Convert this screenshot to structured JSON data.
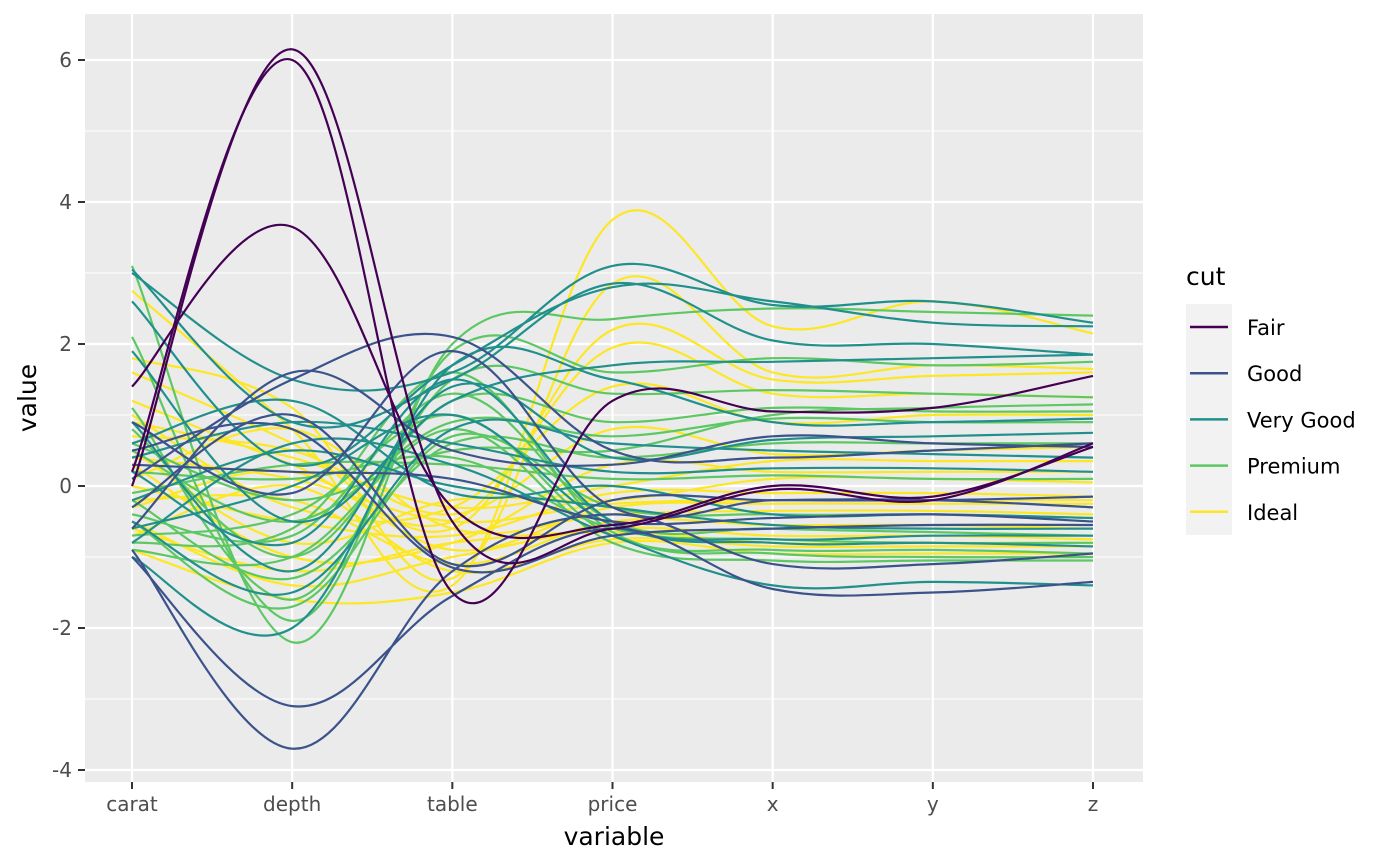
{
  "chart_data": {
    "type": "line",
    "subtype": "parallel-coordinates",
    "xlabel": "variable",
    "ylabel": "value",
    "categories": [
      "carat",
      "depth",
      "table",
      "price",
      "x",
      "y",
      "z"
    ],
    "ylim": [
      -4.2,
      6.5
    ],
    "yticks": [
      -4,
      -2,
      0,
      2,
      4,
      6
    ],
    "ytick_labels": [
      "-4",
      "-2",
      "0",
      "2",
      "4",
      "6"
    ],
    "grid": true,
    "legend": {
      "title": "cut",
      "position": "right",
      "entries": [
        {
          "label": "Fair",
          "color": "#440154"
        },
        {
          "label": "Good",
          "color": "#3B528B"
        },
        {
          "label": "Very Good",
          "color": "#21908C"
        },
        {
          "label": "Premium",
          "color": "#5DC863"
        },
        {
          "label": "Ideal",
          "color": "#FDE725"
        }
      ]
    },
    "series": [
      {
        "cut": "Fair",
        "values": [
          0.0,
          6.15,
          -0.5,
          -0.6,
          -0.05,
          -0.2,
          0.6
        ]
      },
      {
        "cut": "Fair",
        "values": [
          1.4,
          3.65,
          -0.3,
          -0.55,
          0.0,
          -0.15,
          0.55
        ]
      },
      {
        "cut": "Fair",
        "values": [
          0.2,
          6.0,
          -1.5,
          1.2,
          1.05,
          1.1,
          1.55
        ]
      },
      {
        "cut": "Good",
        "values": [
          -0.9,
          -3.7,
          -1.2,
          -0.4,
          -1.1,
          -1.1,
          -0.95
        ]
      },
      {
        "cut": "Good",
        "values": [
          -1.0,
          -3.1,
          -1.55,
          -0.6,
          -1.45,
          -1.5,
          -1.35
        ]
      },
      {
        "cut": "Good",
        "values": [
          0.1,
          1.5,
          2.1,
          0.5,
          0.4,
          0.5,
          0.6
        ]
      },
      {
        "cut": "Good",
        "values": [
          -0.3,
          1.0,
          -1.1,
          -0.2,
          -0.2,
          -0.2,
          -0.15
        ]
      },
      {
        "cut": "Good",
        "values": [
          0.5,
          0.8,
          -1.15,
          -0.7,
          -0.6,
          -0.55,
          -0.55
        ]
      },
      {
        "cut": "Good",
        "values": [
          -0.6,
          1.6,
          0.5,
          0.3,
          0.7,
          0.6,
          0.55
        ]
      },
      {
        "cut": "Good",
        "values": [
          0.9,
          -0.1,
          1.9,
          -0.3,
          -0.2,
          -0.2,
          -0.3
        ]
      },
      {
        "cut": "Good",
        "values": [
          0.3,
          0.2,
          0.1,
          -0.5,
          -0.45,
          -0.4,
          -0.5
        ]
      },
      {
        "cut": "Very Good",
        "values": [
          3.0,
          1.5,
          1.6,
          3.1,
          2.55,
          2.6,
          2.3
        ]
      },
      {
        "cut": "Very Good",
        "values": [
          3.05,
          0.9,
          1.5,
          2.85,
          2.05,
          2.0,
          1.85
        ]
      },
      {
        "cut": "Very Good",
        "values": [
          2.6,
          0.3,
          1.7,
          2.8,
          2.6,
          2.3,
          2.25
        ]
      },
      {
        "cut": "Very Good",
        "values": [
          1.9,
          -0.5,
          1.2,
          1.7,
          1.75,
          1.8,
          1.85
        ]
      },
      {
        "cut": "Very Good",
        "values": [
          -1.0,
          -2.0,
          1.7,
          1.5,
          0.9,
          0.9,
          0.95
        ]
      },
      {
        "cut": "Very Good",
        "values": [
          -0.5,
          -1.5,
          0.8,
          0.6,
          0.5,
          0.45,
          0.4
        ]
      },
      {
        "cut": "Very Good",
        "values": [
          0.6,
          1.2,
          -0.1,
          0.0,
          -0.4,
          -0.4,
          -0.45
        ]
      },
      {
        "cut": "Very Good",
        "values": [
          -0.8,
          0.6,
          0.3,
          -0.7,
          -1.4,
          -1.35,
          -1.4
        ]
      },
      {
        "cut": "Very Good",
        "values": [
          0.2,
          -0.8,
          1.5,
          -0.5,
          -0.8,
          -0.8,
          -0.85
        ]
      },
      {
        "cut": "Very Good",
        "values": [
          -0.2,
          0.5,
          0.0,
          -0.3,
          -0.55,
          -0.6,
          -0.6
        ]
      },
      {
        "cut": "Very Good",
        "values": [
          0.9,
          -1.2,
          1.4,
          0.4,
          0.65,
          0.7,
          0.75
        ]
      },
      {
        "cut": "Very Good",
        "values": [
          -0.6,
          0.0,
          1.0,
          -0.55,
          -0.75,
          -0.7,
          -0.7
        ]
      },
      {
        "cut": "Very Good",
        "values": [
          0.4,
          0.9,
          0.6,
          0.2,
          0.25,
          0.25,
          0.2
        ]
      },
      {
        "cut": "Premium",
        "values": [
          3.1,
          -2.2,
          2.0,
          2.35,
          2.5,
          2.45,
          2.4
        ]
      },
      {
        "cut": "Premium",
        "values": [
          2.1,
          -1.9,
          1.9,
          1.6,
          1.8,
          1.7,
          1.75
        ]
      },
      {
        "cut": "Premium",
        "values": [
          1.1,
          -1.6,
          1.5,
          1.3,
          1.35,
          1.3,
          1.25
        ]
      },
      {
        "cut": "Premium",
        "values": [
          0.8,
          -1.0,
          1.2,
          0.9,
          1.1,
          1.05,
          1.05
        ]
      },
      {
        "cut": "Premium",
        "values": [
          0.5,
          -0.5,
          0.9,
          0.7,
          0.95,
          0.9,
          0.9
        ]
      },
      {
        "cut": "Premium",
        "values": [
          -0.2,
          -1.3,
          0.6,
          0.4,
          0.6,
          0.6,
          0.6
        ]
      },
      {
        "cut": "Premium",
        "values": [
          -0.5,
          -1.7,
          0.7,
          -0.3,
          -0.4,
          -0.4,
          -0.45
        ]
      },
      {
        "cut": "Premium",
        "values": [
          -0.7,
          -0.4,
          1.0,
          -0.7,
          -0.9,
          -0.9,
          -0.95
        ]
      },
      {
        "cut": "Premium",
        "values": [
          -0.9,
          -1.0,
          0.8,
          -0.8,
          -1.05,
          -1.05,
          -1.05
        ]
      },
      {
        "cut": "Premium",
        "values": [
          0.2,
          0.1,
          0.4,
          -0.6,
          -0.75,
          -0.8,
          -0.8
        ]
      },
      {
        "cut": "Premium",
        "values": [
          -0.4,
          -0.7,
          1.3,
          -0.5,
          -0.6,
          -0.65,
          -0.7
        ]
      },
      {
        "cut": "Premium",
        "values": [
          -0.1,
          0.3,
          0.3,
          0.1,
          0.15,
          0.1,
          0.1
        ]
      },
      {
        "cut": "Premium",
        "values": [
          0.6,
          -0.2,
          0.5,
          0.5,
          1.0,
          1.1,
          1.15
        ]
      },
      {
        "cut": "Premium",
        "values": [
          -0.8,
          -0.6,
          1.6,
          -0.65,
          -0.95,
          -1.0,
          -1.0
        ]
      },
      {
        "cut": "Ideal",
        "values": [
          2.75,
          0.8,
          -1.4,
          3.75,
          2.25,
          2.6,
          2.15
        ]
      },
      {
        "cut": "Ideal",
        "values": [
          1.8,
          1.1,
          -1.3,
          2.85,
          1.6,
          1.7,
          1.65
        ]
      },
      {
        "cut": "Ideal",
        "values": [
          1.6,
          0.6,
          -0.6,
          2.2,
          1.5,
          1.55,
          1.6
        ]
      },
      {
        "cut": "Ideal",
        "values": [
          1.2,
          0.3,
          -0.5,
          1.95,
          1.3,
          1.3,
          1.25
        ]
      },
      {
        "cut": "Ideal",
        "values": [
          1.0,
          -0.3,
          -0.3,
          1.4,
          0.9,
          1.0,
          1.0
        ]
      },
      {
        "cut": "Ideal",
        "values": [
          0.7,
          0.5,
          -0.4,
          0.8,
          0.45,
          0.5,
          0.55
        ]
      },
      {
        "cut": "Ideal",
        "values": [
          0.3,
          -1.0,
          -0.8,
          0.3,
          0.2,
          0.2,
          0.2
        ]
      },
      {
        "cut": "Ideal",
        "values": [
          0.0,
          -0.5,
          -0.7,
          -0.1,
          -0.1,
          -0.1,
          -0.15
        ]
      },
      {
        "cut": "Ideal",
        "values": [
          -0.3,
          0.2,
          -0.9,
          -0.3,
          -0.25,
          -0.25,
          -0.25
        ]
      },
      {
        "cut": "Ideal",
        "values": [
          -0.5,
          -1.4,
          -1.0,
          -0.6,
          -0.7,
          -0.7,
          -0.75
        ]
      },
      {
        "cut": "Ideal",
        "values": [
          -0.7,
          0.0,
          -1.2,
          -0.75,
          -0.85,
          -0.85,
          -0.85
        ]
      },
      {
        "cut": "Ideal",
        "values": [
          -0.9,
          -1.6,
          -1.5,
          -0.8,
          -0.95,
          -0.95,
          -0.95
        ]
      },
      {
        "cut": "Ideal",
        "values": [
          0.5,
          -0.8,
          -0.2,
          -0.2,
          0.1,
          0.1,
          0.05
        ]
      },
      {
        "cut": "Ideal",
        "values": [
          0.1,
          0.8,
          -0.6,
          -0.4,
          -0.35,
          -0.35,
          -0.4
        ]
      },
      {
        "cut": "Ideal",
        "values": [
          -0.2,
          -0.2,
          -1.1,
          -0.5,
          -0.55,
          -0.55,
          -0.6
        ]
      },
      {
        "cut": "Ideal",
        "values": [
          0.9,
          0.4,
          -0.3,
          0.0,
          0.35,
          0.35,
          0.35
        ]
      },
      {
        "cut": "Ideal",
        "values": [
          -0.6,
          -1.2,
          -0.8,
          -0.65,
          -0.8,
          -0.8,
          -0.8
        ]
      },
      {
        "cut": "Ideal",
        "values": [
          0.4,
          0.1,
          -0.5,
          -0.25,
          -0.2,
          -0.2,
          -0.2
        ]
      }
    ]
  }
}
